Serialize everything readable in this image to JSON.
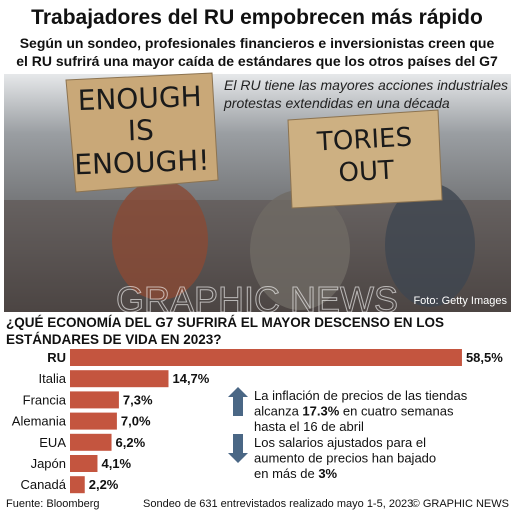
{
  "header": {
    "title": "Trabajadores del RU empobrecen más rápido",
    "subtitle": [
      "Según un sondeo, profesionales financieros e inversionistas creen que",
      "el RU sufrirá una mayor caída de estándares que los otros países del G7"
    ]
  },
  "photo": {
    "caption": [
      "El RU tiene las mayores acciones industriales",
      "protestas extendidas en una década"
    ],
    "credit": "Foto: Getty Images",
    "watermark": "GRAPHIC NEWS",
    "signs": [
      [
        "ENOUGH",
        "IS",
        "ENOUGH!"
      ],
      [
        "TORIES",
        "OUT"
      ]
    ]
  },
  "chart_data": {
    "type": "bar",
    "orientation": "horizontal",
    "title": [
      "¿QUÉ ECONOMÍA DEL G7 SUFRIRÁ EL MAYOR DESCENSO EN LOS",
      "ESTÁNDARES DE VIDA EN 2023?"
    ],
    "categories": [
      "RU",
      "Italia",
      "Francia",
      "Alemania",
      "EUA",
      "Japón",
      "Canadá"
    ],
    "values": [
      58.5,
      14.7,
      7.3,
      7.0,
      6.2,
      4.1,
      2.2
    ],
    "value_labels": [
      "58,5%",
      "14,7%",
      "7,3%",
      "7,0%",
      "6,2%",
      "4,1%",
      "2,2%"
    ],
    "color": "#c4553f",
    "annotations": [
      {
        "direction": "up",
        "lines": [
          [
            "La inflación de precios de las tiendas"
          ],
          [
            "alcanza ",
            "17.3%",
            " en cuatro semanas"
          ],
          [
            "hasta el 16 de abril"
          ]
        ]
      },
      {
        "direction": "down",
        "lines": [
          [
            "Los salarios ajustados para el"
          ],
          [
            "aumento de precios han bajado"
          ],
          [
            "en más de ",
            "3%"
          ]
        ]
      }
    ]
  },
  "footer": {
    "source": "Fuente: Bloomberg",
    "note": "Sondeo de 631 entrevistados realizado mayo 1-5, 2023",
    "copyright": "© GRAPHIC NEWS"
  }
}
